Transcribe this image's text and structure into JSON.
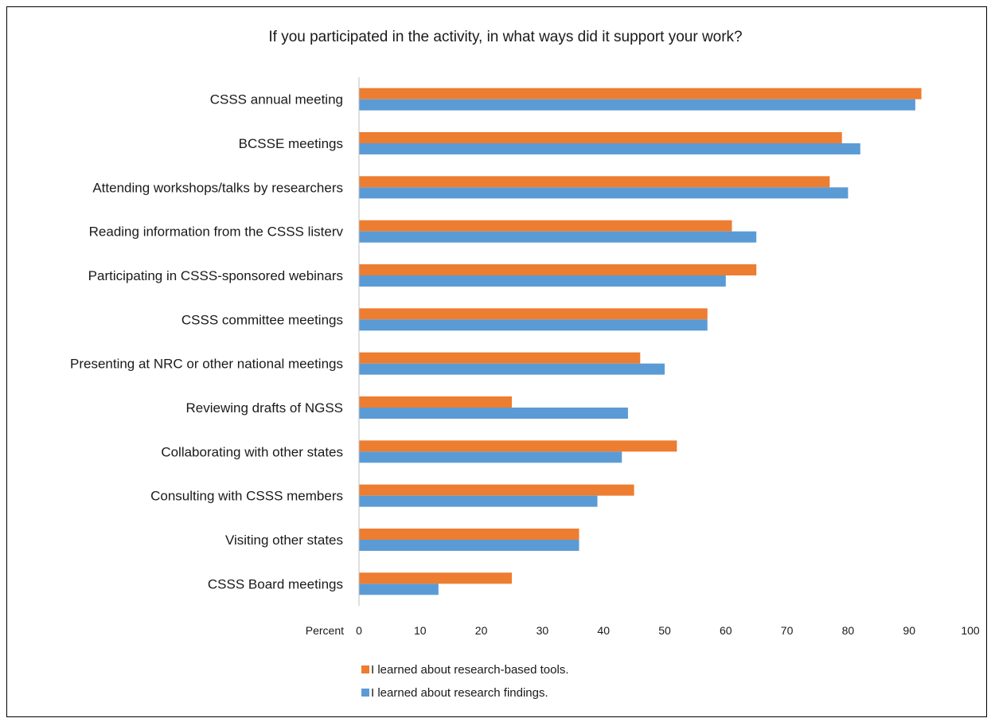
{
  "chart_data": {
    "type": "bar",
    "orientation": "horizontal",
    "title": "If you participated in the activity, in what ways did it support your work?",
    "xlabel": "Percent",
    "ylabel": "",
    "xlim": [
      0,
      100
    ],
    "xticks": [
      "0",
      "10",
      "20",
      "30",
      "40",
      "50",
      "60",
      "70",
      "80",
      "90",
      "100"
    ],
    "grid": false,
    "legend_position": "bottom",
    "categories": [
      "CSSS annual meeting",
      "BCSSE meetings",
      "Attending workshops/talks by researchers",
      "Reading information from the CSSS listerv",
      "Participating in CSSS-sponsored webinars",
      "CSSS committee meetings",
      "Presenting at NRC or other national meetings",
      "Reviewing drafts of NGSS",
      "Collaborating with other states",
      "Consulting with CSSS members",
      "Visiting other states",
      "CSSS Board meetings"
    ],
    "series": [
      {
        "name": "I learned about research-based tools.",
        "color": "#ED7D31",
        "values": [
          92,
          79,
          77,
          61,
          65,
          57,
          46,
          25,
          52,
          45,
          36,
          25
        ]
      },
      {
        "name": "I learned about research findings.",
        "color": "#5B9BD5",
        "values": [
          91,
          82,
          80,
          65,
          60,
          57,
          50,
          44,
          43,
          39,
          36,
          13
        ]
      }
    ]
  }
}
